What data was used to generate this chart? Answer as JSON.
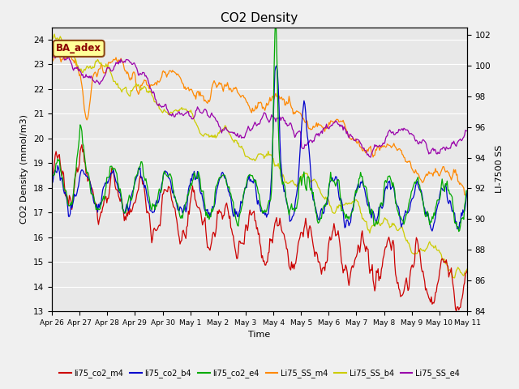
{
  "title": "CO2 Density",
  "xlabel": "Time",
  "ylabel_left": "CO2 Density (mmol/m3)",
  "ylabel_right": "LI-7500 SS",
  "ylim_left": [
    13.0,
    24.5
  ],
  "ylim_right": [
    84,
    102.5
  ],
  "yticks_left": [
    13.0,
    14.0,
    15.0,
    16.0,
    17.0,
    18.0,
    19.0,
    20.0,
    21.0,
    22.0,
    23.0,
    24.0
  ],
  "yticks_right": [
    84,
    86,
    88,
    90,
    92,
    94,
    96,
    98,
    100,
    102
  ],
  "xtick_labels": [
    "Apr 26",
    "Apr 27",
    "Apr 28",
    "Apr 29",
    "Apr 30",
    "May 1",
    "May 2",
    "May 3",
    "May 4",
    "May 5",
    "May 6",
    "May 7",
    "May 8",
    "May 9",
    "May 10",
    "May 11"
  ],
  "colors": {
    "li75_co2_m4": "#cc0000",
    "li75_co2_b4": "#0000cc",
    "li75_co2_e4": "#00aa00",
    "Li75_SS_m4": "#ff8800",
    "Li75_SS_b4": "#cccc00",
    "Li75_SS_e4": "#9900aa"
  },
  "annotation_text": "BA_adex",
  "annotation_color": "#8b0000",
  "annotation_bg": "#ffff99",
  "annotation_border": "#8b4513",
  "background_color": "#e8e8e8",
  "grid_color": "#ffffff",
  "n_points": 500,
  "n_days": 15
}
